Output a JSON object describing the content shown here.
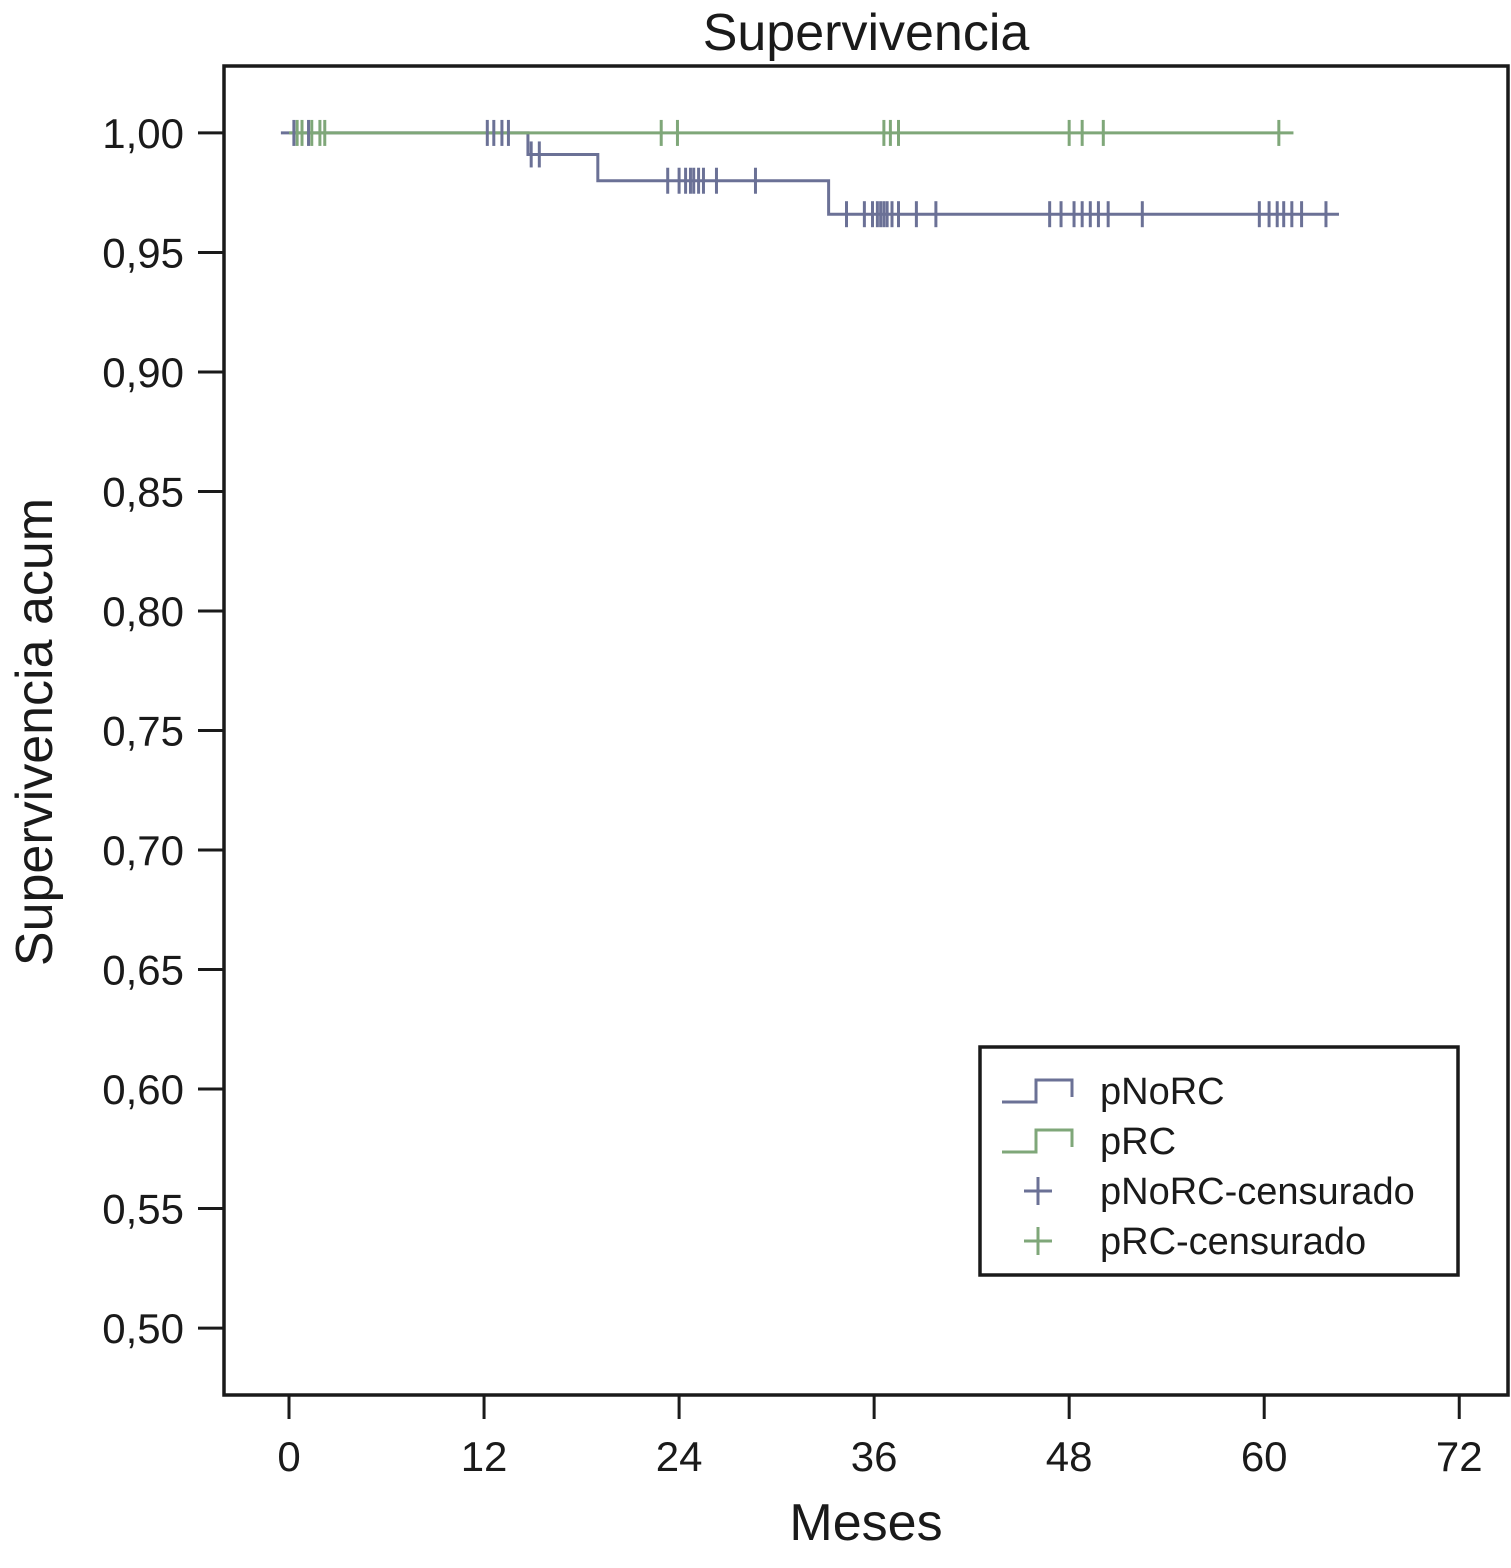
{
  "chart_data": {
    "type": "line",
    "subtype": "kaplan-meier step",
    "title": "Supervivencia",
    "xlabel": "Meses",
    "ylabel": "Supervivencia acum",
    "xlim": [
      -4,
      75
    ],
    "ylim": [
      0.472,
      1.028
    ],
    "xticks": [
      0,
      12,
      24,
      36,
      48,
      60,
      72
    ],
    "xtick_labels": [
      "0",
      "12",
      "24",
      "36",
      "48",
      "60",
      "72"
    ],
    "yticks": [
      0.5,
      0.55,
      0.6,
      0.65,
      0.7,
      0.75,
      0.8,
      0.85,
      0.9,
      0.95,
      1.0
    ],
    "ytick_labels": [
      "0,50",
      "0,55",
      "0,60",
      "0,65",
      "0,70",
      "0,75",
      "0,80",
      "0,85",
      "0,90",
      "0,95",
      "1,00"
    ],
    "grid": false,
    "legend_position": "bottom-right",
    "series": [
      {
        "name": "pNoRC",
        "color": "#6b7196",
        "steps": [
          [
            -0.5,
            1.0
          ],
          [
            14.7,
            0.991
          ],
          [
            19.0,
            0.98
          ],
          [
            33.2,
            0.966
          ],
          [
            64.6,
            0.966
          ]
        ],
        "censored": [
          {
            "x": 0.3,
            "y": 1.0
          },
          {
            "x": 1.2,
            "y": 1.0
          },
          {
            "x": 12.2,
            "y": 1.0
          },
          {
            "x": 12.6,
            "y": 1.0
          },
          {
            "x": 13.1,
            "y": 1.0
          },
          {
            "x": 13.5,
            "y": 1.0
          },
          {
            "x": 14.9,
            "y": 0.991
          },
          {
            "x": 15.4,
            "y": 0.991
          },
          {
            "x": 23.3,
            "y": 0.98
          },
          {
            "x": 24.0,
            "y": 0.98
          },
          {
            "x": 24.4,
            "y": 0.98
          },
          {
            "x": 24.7,
            "y": 0.98
          },
          {
            "x": 24.9,
            "y": 0.98
          },
          {
            "x": 25.2,
            "y": 0.98
          },
          {
            "x": 25.5,
            "y": 0.98
          },
          {
            "x": 26.3,
            "y": 0.98
          },
          {
            "x": 28.7,
            "y": 0.98
          },
          {
            "x": 34.3,
            "y": 0.966
          },
          {
            "x": 35.4,
            "y": 0.966
          },
          {
            "x": 35.9,
            "y": 0.966
          },
          {
            "x": 36.2,
            "y": 0.966
          },
          {
            "x": 36.4,
            "y": 0.966
          },
          {
            "x": 36.6,
            "y": 0.966
          },
          {
            "x": 36.8,
            "y": 0.966
          },
          {
            "x": 37.1,
            "y": 0.966
          },
          {
            "x": 37.5,
            "y": 0.966
          },
          {
            "x": 38.6,
            "y": 0.966
          },
          {
            "x": 39.8,
            "y": 0.966
          },
          {
            "x": 46.8,
            "y": 0.966
          },
          {
            "x": 47.5,
            "y": 0.966
          },
          {
            "x": 48.3,
            "y": 0.966
          },
          {
            "x": 48.8,
            "y": 0.966
          },
          {
            "x": 49.3,
            "y": 0.966
          },
          {
            "x": 49.8,
            "y": 0.966
          },
          {
            "x": 50.4,
            "y": 0.966
          },
          {
            "x": 52.5,
            "y": 0.966
          },
          {
            "x": 59.7,
            "y": 0.966
          },
          {
            "x": 60.3,
            "y": 0.966
          },
          {
            "x": 60.8,
            "y": 0.966
          },
          {
            "x": 61.2,
            "y": 0.966
          },
          {
            "x": 61.7,
            "y": 0.966
          },
          {
            "x": 62.3,
            "y": 0.966
          },
          {
            "x": 63.8,
            "y": 0.966
          }
        ]
      },
      {
        "name": "pRC",
        "color": "#7fa779",
        "steps": [
          [
            0.0,
            1.0
          ],
          [
            61.8,
            1.0
          ]
        ],
        "censored": [
          {
            "x": 0.5,
            "y": 1.0
          },
          {
            "x": 0.8,
            "y": 1.0
          },
          {
            "x": 1.4,
            "y": 1.0
          },
          {
            "x": 1.9,
            "y": 1.0
          },
          {
            "x": 2.2,
            "y": 1.0
          },
          {
            "x": 22.9,
            "y": 1.0
          },
          {
            "x": 23.9,
            "y": 1.0
          },
          {
            "x": 36.6,
            "y": 1.0
          },
          {
            "x": 37.0,
            "y": 1.0
          },
          {
            "x": 37.5,
            "y": 1.0
          },
          {
            "x": 48.0,
            "y": 1.0
          },
          {
            "x": 48.8,
            "y": 1.0
          },
          {
            "x": 50.1,
            "y": 1.0
          },
          {
            "x": 60.9,
            "y": 1.0
          }
        ]
      }
    ],
    "legend": {
      "entries": [
        {
          "label": "pNoRC",
          "kind": "step",
          "color": "#6b7196"
        },
        {
          "label": "pRC",
          "kind": "step",
          "color": "#7fa779"
        },
        {
          "label": "pNoRC-censurado",
          "kind": "plus",
          "color": "#6b7196"
        },
        {
          "label": "pRC-censurado",
          "kind": "plus",
          "color": "#7fa779"
        }
      ]
    },
    "frame_color": "#1a1a1a"
  }
}
